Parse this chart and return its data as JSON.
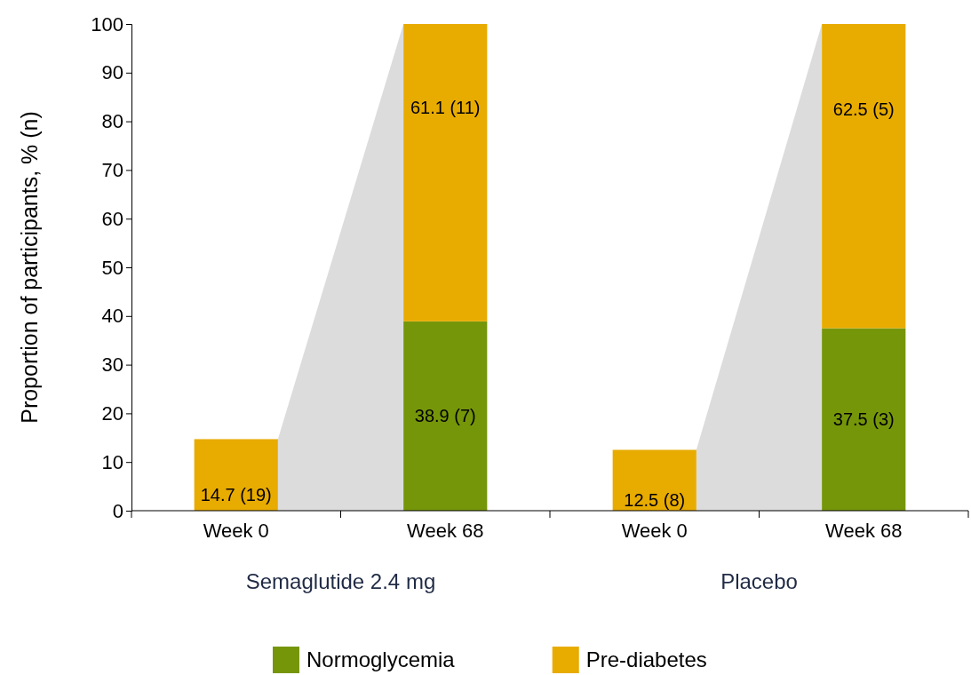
{
  "chart_data": {
    "type": "bar",
    "stacked": true,
    "ylabel": "Proportion of participants, % (n)",
    "categories": [
      "Week 0",
      "Week 68",
      "Week 0",
      "Week 68"
    ],
    "series": [
      {
        "name": "Normoglycemia",
        "color": "#76960a",
        "values": [
          0,
          38.9,
          0,
          37.5
        ],
        "value_labels": [
          null,
          "38.9 (7)",
          null,
          "37.5 (3)"
        ]
      },
      {
        "name": "Pre-diabetes",
        "color": "#e8ab00",
        "values": [
          14.7,
          61.1,
          12.5,
          62.5
        ],
        "value_labels": [
          "14.7 (19)",
          "61.1 (11)",
          "12.5 (8)",
          "62.5 (5)"
        ]
      }
    ],
    "ylim": [
      0,
      100
    ],
    "yticks": [
      0,
      10,
      20,
      30,
      40,
      50,
      60,
      70,
      80,
      90,
      100
    ],
    "annotations": [
      "Semaglutide 2.4 mg",
      "Placebo"
    ],
    "legend": "bottom"
  }
}
